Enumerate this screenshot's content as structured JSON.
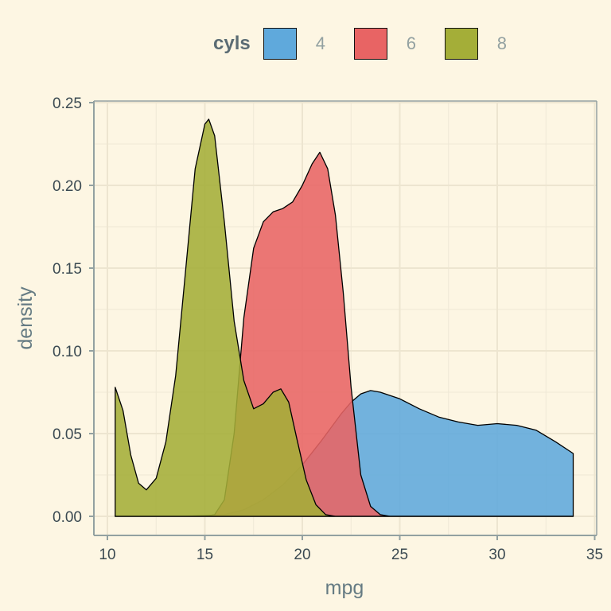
{
  "legend": {
    "title": "cyls",
    "items": [
      {
        "label": "4",
        "color": "#5fa9dc"
      },
      {
        "label": "6",
        "color": "#e86464"
      },
      {
        "label": "8",
        "color": "#a4ae38"
      }
    ]
  },
  "colors": {
    "background": "#fdf6e3",
    "grid": "#efe8d6",
    "axis": "#93a1a1",
    "outline": "#000000"
  },
  "chart_data": {
    "type": "area",
    "xlabel": "mpg",
    "ylabel": "density",
    "xlim": [
      10,
      35
    ],
    "ylim": [
      0,
      0.25
    ],
    "xticks": [
      10,
      15,
      20,
      25,
      30,
      35
    ],
    "yticks": [
      "0.00",
      "0.05",
      "0.10",
      "0.15",
      "0.20",
      "0.25"
    ],
    "grid": true,
    "legend_position": "top",
    "series": [
      {
        "name": "4",
        "color": "#5fa9dc",
        "x": [
          10.4,
          14,
          16,
          17,
          18,
          19,
          20,
          21,
          22,
          22.5,
          23,
          23.5,
          24,
          25,
          26,
          27,
          28,
          29,
          30,
          31,
          32,
          33,
          33.9
        ],
        "y": [
          0,
          0,
          0.001,
          0.004,
          0.01,
          0.019,
          0.031,
          0.046,
          0.062,
          0.069,
          0.074,
          0.076,
          0.075,
          0.071,
          0.065,
          0.06,
          0.057,
          0.055,
          0.056,
          0.055,
          0.052,
          0.045,
          0.038
        ]
      },
      {
        "name": "6",
        "color": "#e86464",
        "x": [
          10.4,
          15,
          15.5,
          16,
          16.5,
          17,
          17.5,
          18,
          18.5,
          19,
          19.5,
          20,
          20.5,
          20.9,
          21.3,
          21.7,
          22.1,
          22.5,
          23,
          23.5,
          24,
          24.5,
          33.9
        ],
        "y": [
          0,
          0,
          0.001,
          0.01,
          0.05,
          0.12,
          0.162,
          0.178,
          0.184,
          0.186,
          0.19,
          0.2,
          0.213,
          0.22,
          0.21,
          0.182,
          0.135,
          0.078,
          0.025,
          0.006,
          0.001,
          0,
          0
        ]
      },
      {
        "name": "8",
        "color": "#a4ae38",
        "x": [
          10.4,
          10.8,
          11.2,
          11.6,
          12.0,
          12.5,
          13.0,
          13.5,
          14.0,
          14.5,
          15.0,
          15.2,
          15.5,
          16.0,
          16.5,
          17.0,
          17.5,
          18.0,
          18.5,
          18.9,
          19.3,
          19.7,
          20.2,
          20.7,
          21.2,
          21.7,
          33.9
        ],
        "y": [
          0.078,
          0.064,
          0.037,
          0.02,
          0.016,
          0.023,
          0.045,
          0.085,
          0.147,
          0.21,
          0.237,
          0.24,
          0.23,
          0.178,
          0.118,
          0.082,
          0.065,
          0.068,
          0.075,
          0.077,
          0.069,
          0.048,
          0.022,
          0.007,
          0.001,
          0,
          0
        ]
      }
    ]
  }
}
